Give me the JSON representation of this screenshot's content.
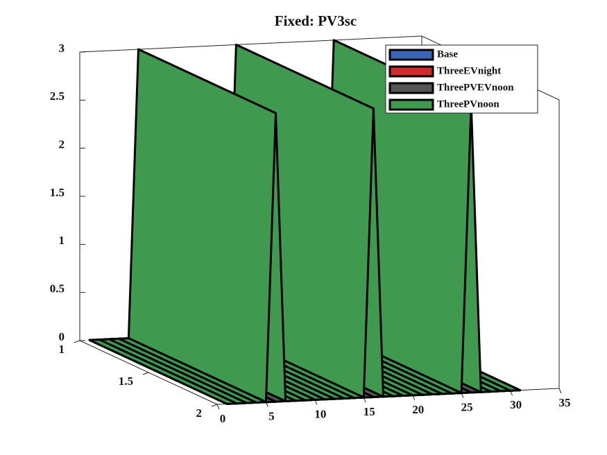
{
  "chart_data": {
    "type": "ribbon3d",
    "title": "Fixed: PV3sc",
    "x": [
      1,
      2,
      3,
      4,
      5,
      6,
      7,
      8,
      9,
      10,
      11,
      12,
      13,
      14,
      15,
      16,
      17,
      18,
      19,
      20,
      21,
      22,
      23,
      24,
      25,
      26,
      27,
      28,
      29,
      30,
      31
    ],
    "series": [
      {
        "name": "Base",
        "color": "#3a66b8",
        "values": [
          0,
          0,
          0,
          0,
          0,
          0,
          0,
          0,
          0,
          0,
          0,
          0,
          0,
          0,
          0,
          0,
          0,
          0,
          0,
          0,
          0,
          0,
          0,
          0,
          0,
          0,
          0,
          0,
          0,
          0,
          0
        ]
      },
      {
        "name": "ThreeEVnight",
        "color": "#d02a2a",
        "values": [
          0,
          0,
          0,
          0,
          0,
          0,
          0,
          0,
          0,
          0,
          0,
          0,
          0,
          0,
          0,
          0,
          0,
          0,
          0,
          0,
          0,
          0,
          0,
          0,
          0,
          0,
          0,
          0,
          0,
          0,
          0
        ]
      },
      {
        "name": "ThreePVEVnoon",
        "color": "#555555",
        "values": [
          0,
          0,
          0,
          0,
          0,
          0,
          0,
          0,
          0,
          0,
          0,
          0,
          0,
          0,
          0,
          0,
          0,
          0,
          0,
          0,
          0,
          0,
          0,
          0,
          0,
          0,
          0,
          0,
          0,
          0,
          0
        ]
      },
      {
        "name": "ThreePVnoon",
        "color": "#3f9a50",
        "values": [
          0,
          0,
          0,
          0,
          0,
          3,
          0,
          0,
          0,
          0,
          0,
          0,
          0,
          0,
          0,
          3,
          0,
          0,
          0,
          0,
          0,
          0,
          0,
          0,
          0,
          3,
          0,
          0,
          0,
          0,
          0
        ]
      }
    ],
    "xlim": [
      0,
      35
    ],
    "xticks": [
      0,
      5,
      10,
      15,
      20,
      25,
      30,
      35
    ],
    "ylim": [
      1,
      2
    ],
    "yticks": [
      1,
      1.5,
      2
    ],
    "zlim": [
      0,
      3
    ],
    "zticks": [
      0,
      0.5,
      1,
      1.5,
      2,
      2.5,
      3
    ],
    "legend": "upper right",
    "grid": false
  }
}
